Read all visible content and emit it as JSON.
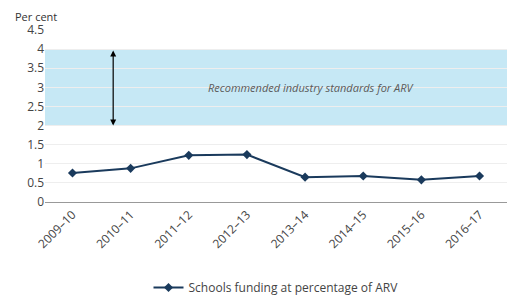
{
  "chart_data": {
    "type": "line",
    "y_label": "Per cent",
    "categories": [
      "2009–10",
      "2010–11",
      "2011–12",
      "2012–13",
      "2013–14",
      "2014–15",
      "2015–16",
      "2016–17"
    ],
    "series": [
      {
        "name": "Schools funding at percentage of ARV",
        "color": "#1a3a5c",
        "marker": "diamond",
        "values": [
          0.76,
          0.88,
          1.22,
          1.24,
          0.65,
          0.68,
          0.58,
          0.68
        ]
      }
    ],
    "band": {
      "range": [
        2.0,
        4.0
      ],
      "color": "#c6e8f5"
    },
    "annotations": [
      "Recommended industry standards for ARV"
    ],
    "ylim": [
      0,
      4.5
    ],
    "yticks": [
      0,
      0.5,
      1,
      1.5,
      2,
      2.5,
      3,
      3.5,
      4,
      4.5
    ],
    "grid": true,
    "legend": "bottom"
  }
}
